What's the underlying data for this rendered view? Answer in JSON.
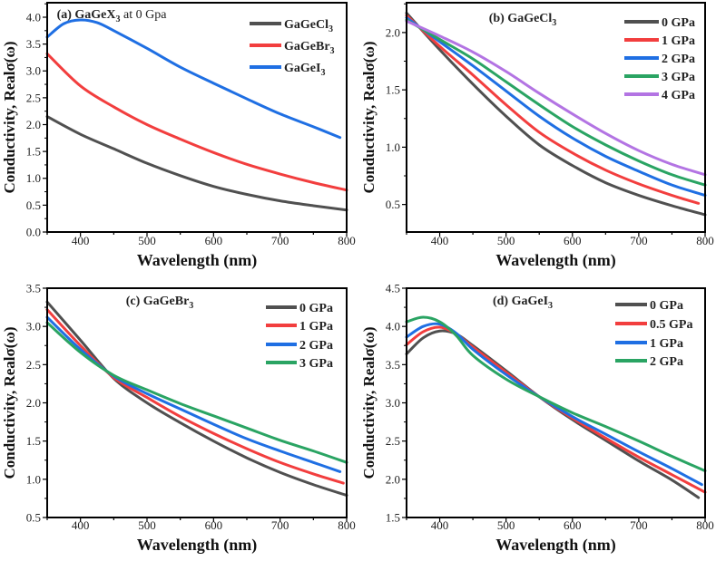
{
  "colors": {
    "0": "#505050",
    "1": "#f23e3e",
    "2": "#1f6fe3",
    "3": "#2aa463",
    "4": "#b374e3"
  },
  "chart_data": [
    {
      "type": "line",
      "title": {
        "pre": "(a) GaGeX",
        "sub": "3",
        "post": " at 0 Gpa"
      },
      "xlabel": "Wavelength (nm)",
      "ylabel": "Conductivity, Realσ(ω)",
      "xlim": [
        350,
        800
      ],
      "ylim": [
        0,
        4.27
      ],
      "xticks": [
        400,
        500,
        600,
        700,
        800
      ],
      "yticks": [
        0.0,
        0.5,
        1.0,
        1.5,
        2.0,
        2.5,
        3.0,
        3.5,
        4.0
      ],
      "ydecimals": 1,
      "legend": "top-right",
      "series": [
        {
          "name": "GaGeCl",
          "sub": "3",
          "x": [
            350,
            400,
            450,
            500,
            550,
            600,
            650,
            700,
            750,
            800
          ],
          "y": [
            2.15,
            1.82,
            1.55,
            1.28,
            1.05,
            0.85,
            0.7,
            0.58,
            0.49,
            0.41
          ]
        },
        {
          "name": "GaGeBr",
          "sub": "3",
          "x": [
            350,
            400,
            450,
            500,
            550,
            600,
            650,
            700,
            750,
            800
          ],
          "y": [
            3.32,
            2.72,
            2.33,
            2.0,
            1.73,
            1.48,
            1.26,
            1.08,
            0.92,
            0.78
          ]
        },
        {
          "name": "GaGeI",
          "sub": "3",
          "x": [
            350,
            375,
            400,
            425,
            450,
            500,
            550,
            600,
            650,
            700,
            750,
            790
          ],
          "y": [
            3.63,
            3.88,
            3.95,
            3.9,
            3.75,
            3.42,
            3.07,
            2.77,
            2.48,
            2.2,
            1.96,
            1.76
          ]
        }
      ]
    },
    {
      "type": "line",
      "title": {
        "pre": "(b) GaGeCl",
        "sub": "3",
        "post": ""
      },
      "xlabel": "Wavelength (nm)",
      "ylabel": "Conductivity, Realσ(ω)",
      "xlim": [
        350,
        800
      ],
      "ylim": [
        0.26,
        2.26
      ],
      "xticks": [
        400,
        500,
        600,
        700,
        800
      ],
      "yticks": [
        0.5,
        1.0,
        1.5,
        2.0
      ],
      "ydecimals": 1,
      "legend": "top-right",
      "series": [
        {
          "name": "0 GPa",
          "sub": "",
          "x": [
            350,
            400,
            450,
            500,
            550,
            600,
            650,
            700,
            750,
            800
          ],
          "y": [
            2.17,
            1.85,
            1.55,
            1.27,
            1.02,
            0.84,
            0.69,
            0.58,
            0.49,
            0.41
          ]
        },
        {
          "name": "1 GPa",
          "sub": "",
          "x": [
            350,
            400,
            450,
            500,
            550,
            600,
            650,
            700,
            750,
            790
          ],
          "y": [
            2.15,
            1.88,
            1.63,
            1.37,
            1.13,
            0.95,
            0.8,
            0.68,
            0.58,
            0.51
          ]
        },
        {
          "name": "2 GPa",
          "sub": "",
          "x": [
            350,
            400,
            450,
            500,
            550,
            600,
            650,
            700,
            750,
            800
          ],
          "y": [
            2.13,
            1.92,
            1.71,
            1.49,
            1.27,
            1.08,
            0.92,
            0.79,
            0.67,
            0.58
          ]
        },
        {
          "name": "3 GPa",
          "sub": "",
          "x": [
            350,
            400,
            450,
            500,
            550,
            600,
            650,
            700,
            750,
            800
          ],
          "y": [
            2.11,
            1.94,
            1.77,
            1.57,
            1.37,
            1.18,
            1.02,
            0.88,
            0.76,
            0.67
          ]
        },
        {
          "name": "4 GPa",
          "sub": "",
          "x": [
            350,
            400,
            450,
            500,
            550,
            600,
            650,
            700,
            750,
            800
          ],
          "y": [
            2.1,
            1.97,
            1.83,
            1.66,
            1.47,
            1.29,
            1.12,
            0.97,
            0.85,
            0.76
          ]
        }
      ]
    },
    {
      "type": "line",
      "title": {
        "pre": "(c) GaGeBr",
        "sub": "3",
        "post": ""
      },
      "xlabel": "Wavelength (nm)",
      "ylabel": "Conductivity, Realσ(ω)",
      "xlim": [
        350,
        800
      ],
      "ylim": [
        0.5,
        3.5
      ],
      "xticks": [
        400,
        500,
        600,
        700,
        800
      ],
      "yticks": [
        0.5,
        1.0,
        1.5,
        2.0,
        2.5,
        3.0,
        3.5
      ],
      "ydecimals": 1,
      "legend": "top-right",
      "series": [
        {
          "name": "0 GPa",
          "sub": "",
          "x": [
            350,
            400,
            450,
            500,
            550,
            600,
            650,
            700,
            750,
            800
          ],
          "y": [
            3.32,
            2.82,
            2.32,
            2.0,
            1.74,
            1.5,
            1.28,
            1.09,
            0.93,
            0.79
          ]
        },
        {
          "name": "1 GPa",
          "sub": "",
          "x": [
            350,
            400,
            450,
            500,
            550,
            600,
            650,
            700,
            750,
            795
          ],
          "y": [
            3.22,
            2.75,
            2.33,
            2.07,
            1.82,
            1.6,
            1.4,
            1.22,
            1.07,
            0.95
          ]
        },
        {
          "name": "2 GPa",
          "sub": "",
          "x": [
            350,
            400,
            450,
            500,
            550,
            600,
            650,
            700,
            750,
            790
          ],
          "y": [
            3.12,
            2.7,
            2.35,
            2.12,
            1.92,
            1.72,
            1.53,
            1.37,
            1.22,
            1.1
          ]
        },
        {
          "name": "3 GPa",
          "sub": "",
          "x": [
            350,
            400,
            450,
            500,
            550,
            600,
            650,
            700,
            750,
            800
          ],
          "y": [
            3.05,
            2.66,
            2.36,
            2.17,
            1.99,
            1.83,
            1.67,
            1.51,
            1.37,
            1.22
          ]
        }
      ]
    },
    {
      "type": "line",
      "title": {
        "pre": "(d) GaGeI",
        "sub": "3",
        "post": ""
      },
      "xlabel": "Wavelength (nm)",
      "ylabel": "Conductivity, Realσ(ω)",
      "xlim": [
        350,
        800
      ],
      "ylim": [
        1.5,
        4.5
      ],
      "xticks": [
        400,
        500,
        600,
        700,
        800
      ],
      "yticks": [
        1.5,
        2.0,
        2.5,
        3.0,
        3.5,
        4.0,
        4.5
      ],
      "ydecimals": 1,
      "legend": "top-right",
      "series": [
        {
          "name": "0 GPa",
          "sub": "",
          "x": [
            350,
            375,
            400,
            425,
            450,
            500,
            550,
            600,
            650,
            700,
            750,
            790
          ],
          "y": [
            3.64,
            3.85,
            3.94,
            3.9,
            3.75,
            3.42,
            3.08,
            2.78,
            2.51,
            2.24,
            1.99,
            1.76
          ]
        },
        {
          "name": "0.5 GPa",
          "sub": "",
          "x": [
            350,
            375,
            400,
            425,
            450,
            500,
            550,
            600,
            650,
            700,
            750,
            800
          ],
          "y": [
            3.76,
            3.93,
            3.99,
            3.9,
            3.73,
            3.4,
            3.08,
            2.8,
            2.54,
            2.29,
            2.06,
            1.83
          ]
        },
        {
          "name": "1 GPa",
          "sub": "",
          "x": [
            350,
            375,
            400,
            425,
            450,
            500,
            550,
            600,
            650,
            700,
            750,
            795
          ],
          "y": [
            3.86,
            4.0,
            4.03,
            3.91,
            3.7,
            3.37,
            3.08,
            2.82,
            2.59,
            2.36,
            2.14,
            1.93
          ]
        },
        {
          "name": "2 GPa",
          "sub": "",
          "x": [
            350,
            375,
            400,
            425,
            450,
            500,
            550,
            600,
            650,
            700,
            750,
            800
          ],
          "y": [
            4.06,
            4.12,
            4.06,
            3.88,
            3.62,
            3.31,
            3.08,
            2.87,
            2.69,
            2.5,
            2.3,
            2.11
          ]
        }
      ]
    }
  ]
}
